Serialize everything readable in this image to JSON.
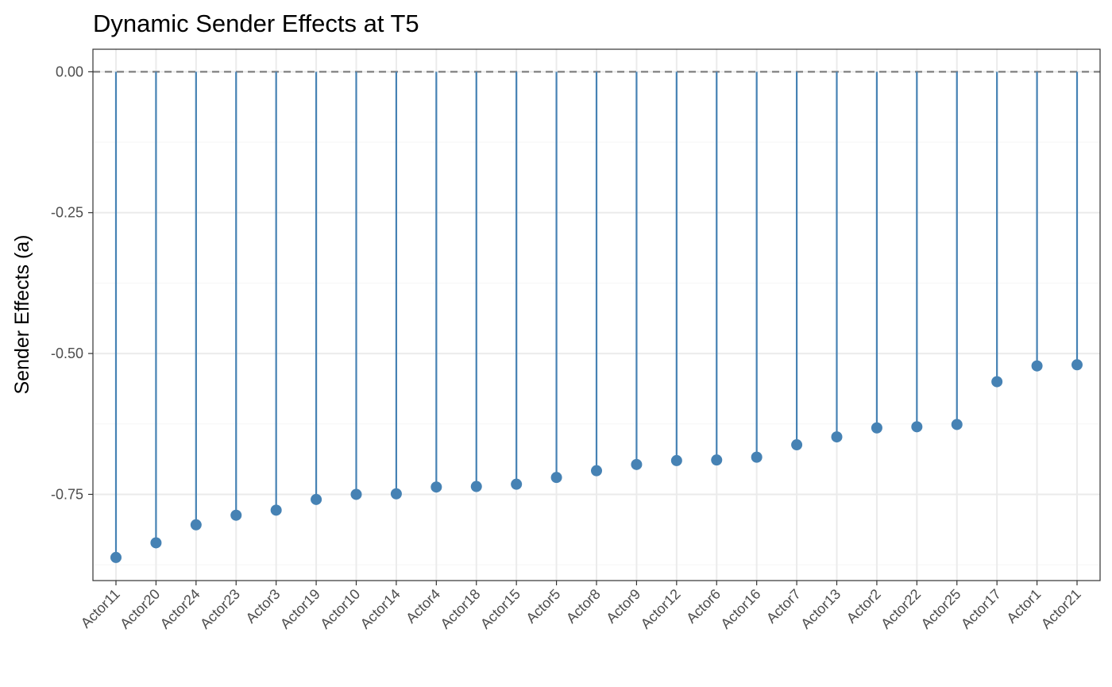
{
  "chart_data": {
    "type": "lollipop",
    "title": "Dynamic Sender Effects at T5",
    "xlabel": "",
    "ylabel": "Sender Effects (a)",
    "categories": [
      "Actor11",
      "Actor20",
      "Actor24",
      "Actor23",
      "Actor3",
      "Actor19",
      "Actor10",
      "Actor14",
      "Actor4",
      "Actor18",
      "Actor15",
      "Actor5",
      "Actor8",
      "Actor9",
      "Actor12",
      "Actor6",
      "Actor16",
      "Actor7",
      "Actor13",
      "Actor2",
      "Actor22",
      "Actor25",
      "Actor17",
      "Actor1",
      "Actor21"
    ],
    "values": [
      -0.862,
      -0.836,
      -0.804,
      -0.787,
      -0.778,
      -0.759,
      -0.75,
      -0.749,
      -0.737,
      -0.736,
      -0.732,
      -0.72,
      -0.708,
      -0.697,
      -0.69,
      -0.689,
      -0.684,
      -0.662,
      -0.648,
      -0.632,
      -0.63,
      -0.626,
      -0.55,
      -0.522,
      -0.52
    ],
    "baseline": 0,
    "yticks": [
      "0.00",
      "-0.25",
      "-0.50",
      "-0.75"
    ],
    "ylim": [
      -0.903,
      0.04
    ],
    "grid": true,
    "colors": {
      "stem": "#4682b4",
      "point": "#4682b4",
      "baseline": "#7f7f7f",
      "grid_major": "#ebebeb",
      "grid_minor": "#f5f5f5",
      "panel_border": "#333333"
    }
  }
}
